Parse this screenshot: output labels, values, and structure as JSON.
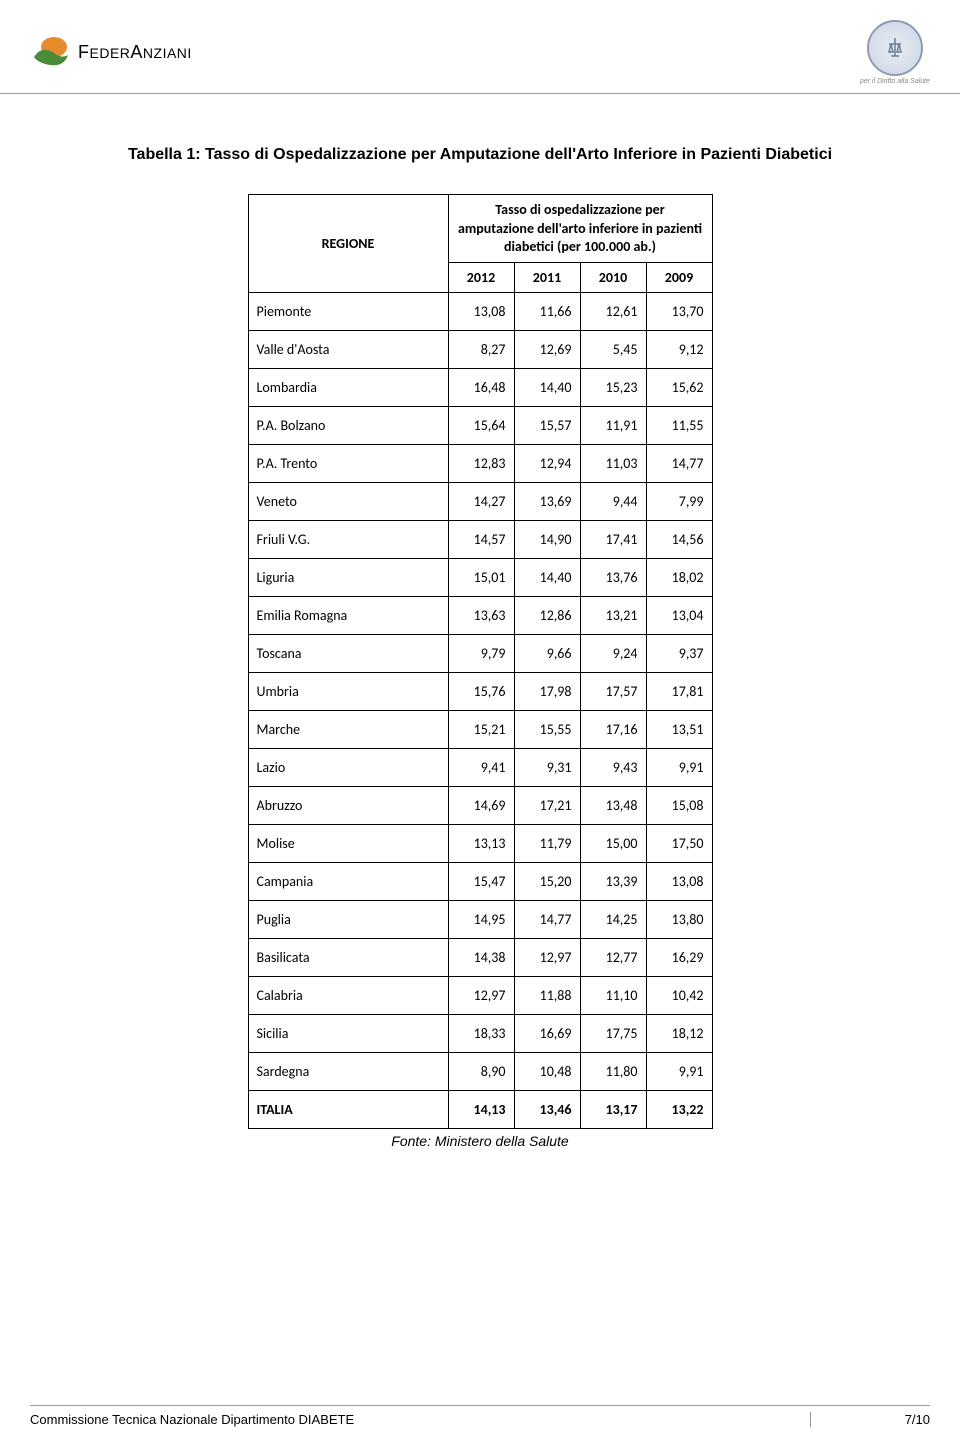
{
  "header": {
    "logo_left_text_1": "F",
    "logo_left_text_2": "EDER",
    "logo_left_text_3": "A",
    "logo_left_text_4": "NZIANI",
    "logo_left_colors": {
      "orange": "#e88b2d",
      "green": "#4a8c3a"
    },
    "seal_caption": "per il Diritto alla Salute",
    "seal_colors": {
      "border": "#8b9db5",
      "bg_inner": "#e8ecf2",
      "bg_outer": "#d4dce8",
      "icon": "#6b7d95"
    }
  },
  "title": "Tabella 1: Tasso di Ospedalizzazione per Amputazione dell'Arto Inferiore in Pazienti Diabetici",
  "table": {
    "header_region": "REGIONE",
    "header_rate": "Tasso di ospedalizzazione per amputazione dell'arto inferiore in pazienti diabetici (per 100.000 ab.)",
    "years": [
      "2012",
      "2011",
      "2010",
      "2009"
    ],
    "rows": [
      {
        "region": "Piemonte",
        "values": [
          "13,08",
          "11,66",
          "12,61",
          "13,70"
        ]
      },
      {
        "region": "Valle d'Aosta",
        "values": [
          "8,27",
          "12,69",
          "5,45",
          "9,12"
        ]
      },
      {
        "region": "Lombardia",
        "values": [
          "16,48",
          "14,40",
          "15,23",
          "15,62"
        ]
      },
      {
        "region": "P.A. Bolzano",
        "values": [
          "15,64",
          "15,57",
          "11,91",
          "11,55"
        ]
      },
      {
        "region": "P.A. Trento",
        "values": [
          "12,83",
          "12,94",
          "11,03",
          "14,77"
        ]
      },
      {
        "region": "Veneto",
        "values": [
          "14,27",
          "13,69",
          "9,44",
          "7,99"
        ]
      },
      {
        "region": "Friuli V.G.",
        "values": [
          "14,57",
          "14,90",
          "17,41",
          "14,56"
        ]
      },
      {
        "region": "Liguria",
        "values": [
          "15,01",
          "14,40",
          "13,76",
          "18,02"
        ]
      },
      {
        "region": "Emilia Romagna",
        "values": [
          "13,63",
          "12,86",
          "13,21",
          "13,04"
        ]
      },
      {
        "region": "Toscana",
        "values": [
          "9,79",
          "9,66",
          "9,24",
          "9,37"
        ]
      },
      {
        "region": "Umbria",
        "values": [
          "15,76",
          "17,98",
          "17,57",
          "17,81"
        ]
      },
      {
        "region": "Marche",
        "values": [
          "15,21",
          "15,55",
          "17,16",
          "13,51"
        ]
      },
      {
        "region": "Lazio",
        "values": [
          "9,41",
          "9,31",
          "9,43",
          "9,91"
        ]
      },
      {
        "region": "Abruzzo",
        "values": [
          "14,69",
          "17,21",
          "13,48",
          "15,08"
        ]
      },
      {
        "region": "Molise",
        "values": [
          "13,13",
          "11,79",
          "15,00",
          "17,50"
        ]
      },
      {
        "region": "Campania",
        "values": [
          "15,47",
          "15,20",
          "13,39",
          "13,08"
        ]
      },
      {
        "region": "Puglia",
        "values": [
          "14,95",
          "14,77",
          "14,25",
          "13,80"
        ]
      },
      {
        "region": "Basilicata",
        "values": [
          "14,38",
          "12,97",
          "12,77",
          "16,29"
        ]
      },
      {
        "region": "Calabria",
        "values": [
          "12,97",
          "11,88",
          "11,10",
          "10,42"
        ]
      },
      {
        "region": "Sicilia",
        "values": [
          "18,33",
          "16,69",
          "17,75",
          "18,12"
        ]
      },
      {
        "region": "Sardegna",
        "values": [
          "8,90",
          "10,48",
          "11,80",
          "9,91"
        ]
      }
    ],
    "total": {
      "region": "ITALIA",
      "values": [
        "14,13",
        "13,46",
        "13,17",
        "13,22"
      ]
    }
  },
  "source": "Fonte: Ministero della Salute",
  "footer": {
    "left": "Commissione Tecnica Nazionale Dipartimento DIABETE",
    "right": "7/10"
  },
  "colors": {
    "text": "#000000",
    "border": "#000000",
    "divider": "#999999",
    "background": "#ffffff"
  }
}
